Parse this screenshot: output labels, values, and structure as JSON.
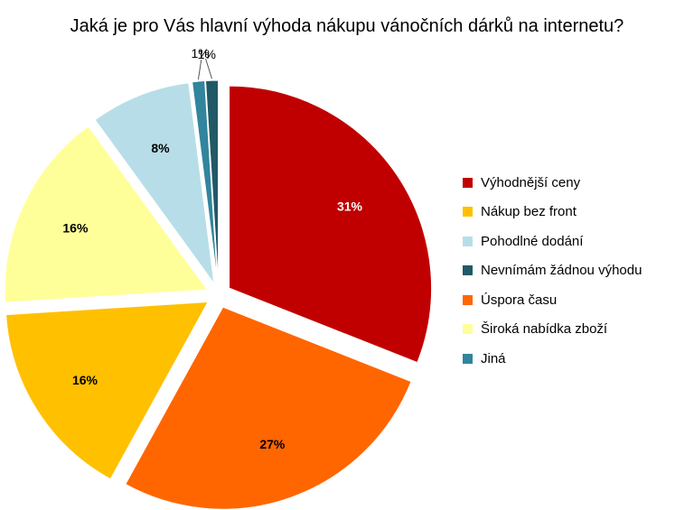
{
  "chart_data": {
    "type": "pie",
    "title": "Jaká je pro Vás hlavní výhoda nákupu vánočních dárků na internetu?",
    "legend_position": "right",
    "slices": [
      {
        "name": "Výhodnější ceny",
        "value": 31,
        "label": "31%",
        "color": "#C00000"
      },
      {
        "name": "Úspora času",
        "value": 27,
        "label": "27%",
        "color": "#FF6600"
      },
      {
        "name": "Nákup bez front",
        "value": 16,
        "label": "16%",
        "color": "#FFC000"
      },
      {
        "name": "Široká nabídka zboží",
        "value": 16,
        "label": "16%",
        "color": "#FFFF99"
      },
      {
        "name": "Pohodlné dodání",
        "value": 8,
        "label": "8%",
        "color": "#B7DEE8"
      },
      {
        "name": "Jiná",
        "value": 1,
        "label": "1%",
        "color": "#31859C"
      },
      {
        "name": "Nevnímám žádnou výhodu",
        "value": 1,
        "label": "1%",
        "color": "#215967"
      }
    ],
    "legend": [
      {
        "label": "Výhodnější ceny",
        "color": "#C00000"
      },
      {
        "label": "Nákup bez front",
        "color": "#FFC000"
      },
      {
        "label": "Pohodlné dodání",
        "color": "#B7DEE8"
      },
      {
        "label": "Nevnímám žádnou výhodu",
        "color": "#215967"
      },
      {
        "label": "Úspora času",
        "color": "#FF6600"
      },
      {
        "label": "Široká nabídka zboží",
        "color": "#FFFF99"
      },
      {
        "label": "Jiná",
        "color": "#31859C"
      }
    ]
  }
}
